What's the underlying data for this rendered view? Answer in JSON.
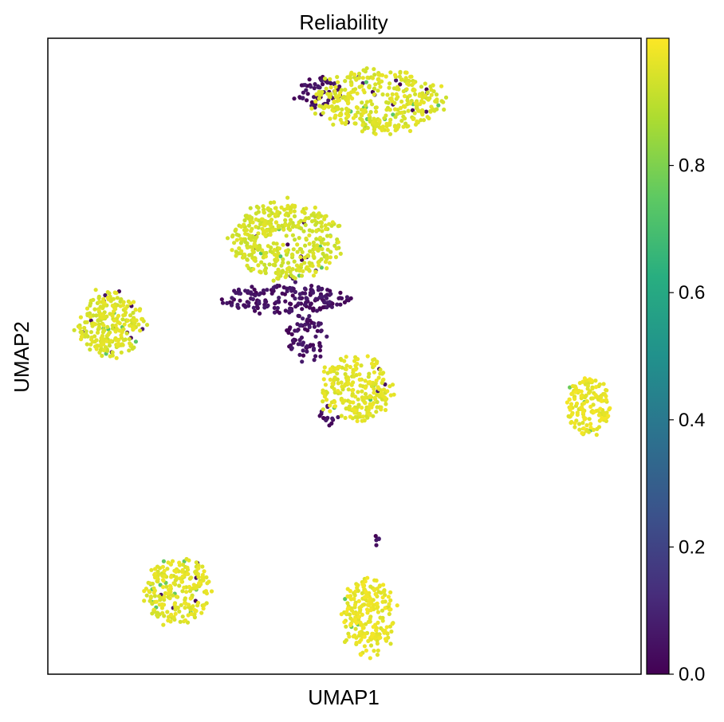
{
  "chart_data": {
    "type": "scatter",
    "title": "Reliability",
    "xlabel": "UMAP1",
    "ylabel": "UMAP2",
    "xlim": [
      0,
      100
    ],
    "ylim": [
      0,
      100
    ],
    "grid": false,
    "xticks": [],
    "yticks": [],
    "colorbar": {
      "label": "",
      "range": [
        0,
        1
      ],
      "ticks": [
        0.0,
        0.2,
        0.4,
        0.6,
        0.8
      ],
      "tick_labels": [
        "0.0",
        "0.2",
        "0.4",
        "0.6",
        "0.8"
      ],
      "colormap": "viridis",
      "colors": [
        "#440154",
        "#472d7b",
        "#3b528b",
        "#2c728e",
        "#21918c",
        "#28ae80",
        "#5ec962",
        "#addc30",
        "#fde725"
      ]
    },
    "clusters": [
      {
        "name": "top",
        "center": [
          56,
          90
        ],
        "spread": [
          9.5,
          4.5
        ],
        "n": 380,
        "reliability": 0.97,
        "low_frac": 0.04
      },
      {
        "name": "top-left-tail",
        "center": [
          45.5,
          91.5
        ],
        "spread": [
          3.5,
          2.0
        ],
        "n": 60,
        "reliability": 0.0,
        "low_frac": 1.0
      },
      {
        "name": "center-upper",
        "center": [
          40,
          68
        ],
        "spread": [
          8.5,
          5.5
        ],
        "n": 420,
        "reliability": 0.96,
        "low_frac": 0.03
      },
      {
        "name": "center-lower-arc",
        "center": [
          40,
          59
        ],
        "spread": [
          9.5,
          2.0
        ],
        "n": 190,
        "reliability": 0.0,
        "low_frac": 1.0
      },
      {
        "name": "center-stem",
        "center": [
          43.5,
          53
        ],
        "spread": [
          3.0,
          3.5
        ],
        "n": 70,
        "reliability": 0.0,
        "low_frac": 1.0
      },
      {
        "name": "left",
        "center": [
          10.5,
          55
        ],
        "spread": [
          5.0,
          4.5
        ],
        "n": 260,
        "reliability": 0.97,
        "low_frac": 0.05
      },
      {
        "name": "center-right",
        "center": [
          52,
          45
        ],
        "spread": [
          5.5,
          4.5
        ],
        "n": 240,
        "reliability": 0.98,
        "low_frac": 0.05
      },
      {
        "name": "center-right-tail",
        "center": [
          47.5,
          40.5
        ],
        "spread": [
          1.5,
          1.5
        ],
        "n": 15,
        "reliability": 0.0,
        "low_frac": 1.0
      },
      {
        "name": "right",
        "center": [
          91,
          42
        ],
        "spread": [
          3.5,
          4.0
        ],
        "n": 160,
        "reliability": 0.99,
        "low_frac": 0.0
      },
      {
        "name": "bottom-left",
        "center": [
          22,
          13
        ],
        "spread": [
          5.0,
          4.5
        ],
        "n": 230,
        "reliability": 0.98,
        "low_frac": 0.02
      },
      {
        "name": "bottom-center",
        "center": [
          54,
          9
        ],
        "spread": [
          4.0,
          5.5
        ],
        "n": 230,
        "reliability": 0.99,
        "low_frac": 0.0
      },
      {
        "name": "bottom-center-dots",
        "center": [
          55.5,
          21
        ],
        "spread": [
          0.6,
          0.8
        ],
        "n": 6,
        "reliability": 0.0,
        "low_frac": 1.0
      }
    ]
  }
}
